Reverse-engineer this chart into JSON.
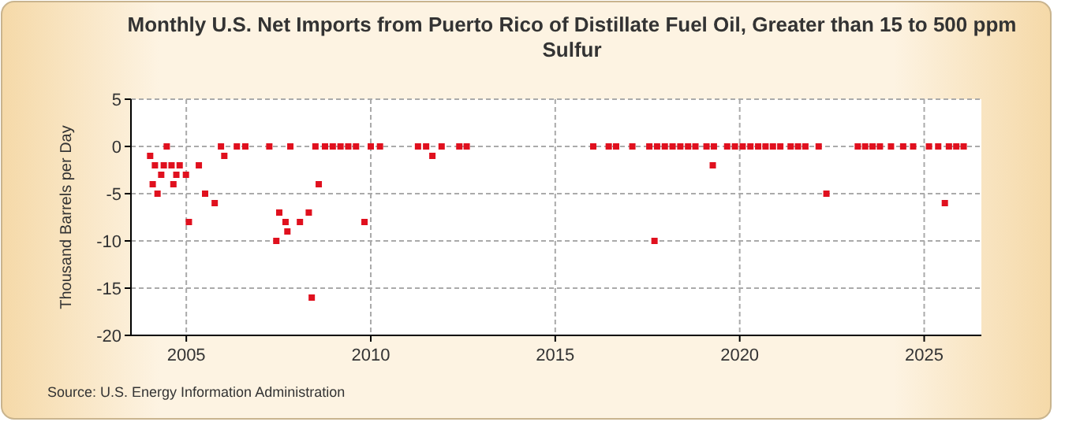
{
  "chart_data": {
    "type": "scatter",
    "title": "Monthly U.S. Net Imports from Puerto Rico of Distillate Fuel Oil, Greater than 15 to 500 ppm Sulfur",
    "ylabel": "Thousand Barrels per Day",
    "annotations": [
      "Source: U.S. Energy Information Administration"
    ],
    "marker": "square",
    "grid": true,
    "xlim": [
      2003.5,
      2026.55
    ],
    "xticks": [
      2005,
      2010,
      2015,
      2020,
      2025
    ],
    "ylim": [
      -20,
      5
    ],
    "yticks": [
      -20,
      -15,
      -10,
      -5,
      0,
      5
    ],
    "series": [
      {
        "color": "#e0101e",
        "x": [
          2004.02,
          2004.09,
          2004.15,
          2004.22,
          2004.32,
          2004.39,
          2004.47,
          2004.6,
          2004.65,
          2004.73,
          2004.82,
          2004.99,
          2005.07,
          2005.34,
          2005.51,
          2005.77,
          2005.94,
          2006.03,
          2006.37,
          2006.6,
          2007.25,
          2007.44,
          2007.52,
          2007.69,
          2007.74,
          2007.82,
          2008.08,
          2008.32,
          2008.4,
          2008.5,
          2008.59,
          2008.76,
          2008.97,
          2009.18,
          2009.39,
          2009.6,
          2009.83,
          2010.0,
          2010.25,
          2011.28,
          2011.5,
          2011.67,
          2011.92,
          2012.4,
          2012.6,
          2016.03,
          2016.45,
          2016.65,
          2017.09,
          2017.55,
          2017.69,
          2017.76,
          2017.97,
          2018.18,
          2018.39,
          2018.6,
          2018.8,
          2019.1,
          2019.27,
          2019.3,
          2019.66,
          2019.87,
          2020.08,
          2020.29,
          2020.5,
          2020.7,
          2020.9,
          2021.1,
          2021.38,
          2021.58,
          2021.78,
          2022.14,
          2022.35,
          2023.2,
          2023.4,
          2023.6,
          2023.8,
          2024.1,
          2024.43,
          2024.7,
          2025.13,
          2025.38,
          2025.56,
          2025.67,
          2025.87,
          2026.07
        ],
        "values": [
          -1,
          -4,
          -2,
          -5,
          -3,
          -2,
          0,
          -2,
          -4,
          -3,
          -2,
          -3,
          -8,
          -2,
          -5,
          -6,
          0,
          -1,
          0,
          0,
          0,
          -10,
          -7,
          -8,
          -9,
          0,
          -8,
          -7,
          -16,
          0,
          -4,
          0,
          0,
          0,
          0,
          0,
          -8,
          0,
          0,
          0,
          0,
          -1,
          0,
          0,
          0,
          0,
          0,
          0,
          0,
          0,
          -10,
          0,
          0,
          0,
          0,
          0,
          0,
          0,
          -2,
          0,
          0,
          0,
          0,
          0,
          0,
          0,
          0,
          0,
          0,
          0,
          0,
          0,
          -5,
          0,
          0,
          0,
          0,
          0,
          0,
          0,
          0,
          0,
          -6,
          0,
          0,
          0
        ]
      }
    ]
  }
}
